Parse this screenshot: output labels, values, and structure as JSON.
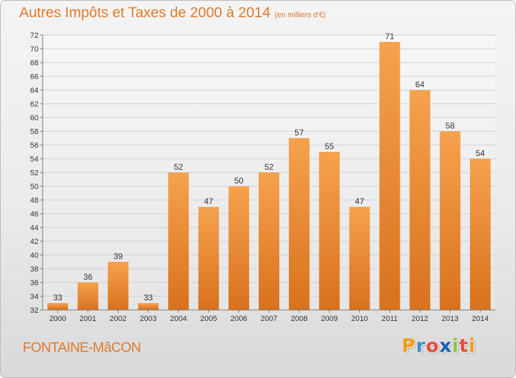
{
  "chart_data": {
    "type": "bar",
    "title": "Autres Impôts et Taxes de 2000 à 2014",
    "subtitle": "(en milliers d'€)",
    "categories": [
      "2000",
      "2001",
      "2002",
      "2003",
      "2004",
      "2005",
      "2006",
      "2007",
      "2008",
      "2009",
      "2010",
      "2011",
      "2012",
      "2013",
      "2014"
    ],
    "values": [
      33,
      36,
      39,
      33,
      52,
      47,
      50,
      52,
      57,
      55,
      47,
      71,
      64,
      58,
      54
    ],
    "ylim": [
      32,
      72
    ],
    "yticks": [
      32,
      34,
      36,
      38,
      40,
      42,
      44,
      46,
      48,
      50,
      52,
      54,
      56,
      58,
      60,
      62,
      64,
      66,
      68,
      70,
      72
    ],
    "grid": "horizontal",
    "bar_color_top": "#f6a24e",
    "bar_color_bottom": "#d9711d",
    "xlabel": "",
    "ylabel": ""
  },
  "footer": {
    "commune": "FONTAINE-MâCON",
    "brand": "Proxiti",
    "brand_colors": [
      "#f39c12",
      "#3a8fd1",
      "#e74c3c",
      "#1a5fb4",
      "#8bc34a",
      "#e74c3c",
      "#f39c12"
    ]
  },
  "colors": {
    "accent": "#e0792a"
  }
}
